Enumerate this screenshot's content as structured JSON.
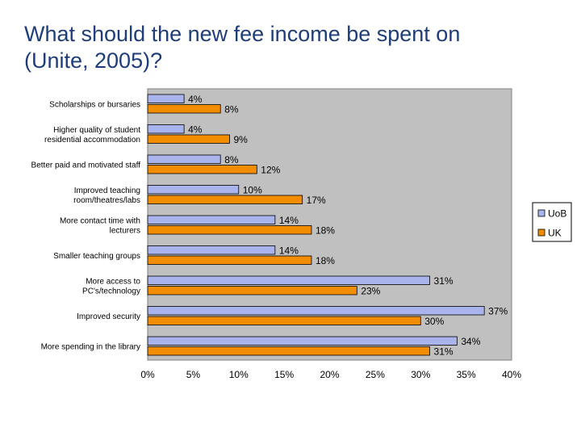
{
  "slide": {
    "title_line1": "What should the new fee income be spent on",
    "title_line2": "(Unite, 2005)?"
  },
  "chart_data": {
    "type": "bar",
    "orientation": "horizontal",
    "categories": [
      [
        "Scholarships or bursaries"
      ],
      [
        "Higher quality of student",
        "residential accommodation"
      ],
      [
        "Better paid and motivated staff"
      ],
      [
        "Improved teaching",
        "room/theatres/labs"
      ],
      [
        "More contact time with",
        "lecturers"
      ],
      [
        "Smaller teaching groups"
      ],
      [
        "More access to",
        "PC's/technology"
      ],
      [
        "Improved security"
      ],
      [
        "More spending in the library"
      ]
    ],
    "series": [
      {
        "name": "UoB",
        "color": "#a9b4ec",
        "values": [
          4,
          4,
          8,
          10,
          14,
          14,
          31,
          37,
          34
        ],
        "labels": [
          "4%",
          "4%",
          "8%",
          "10%",
          "14%",
          "14%",
          "31%",
          "37%",
          "34%"
        ]
      },
      {
        "name": "UK",
        "color": "#f28c00",
        "values": [
          8,
          9,
          12,
          17,
          18,
          18,
          23,
          30,
          31
        ],
        "labels": [
          "8%",
          "9%",
          "12%",
          "17%",
          "18%",
          "18%",
          "23%",
          "30%",
          "31%"
        ]
      }
    ],
    "xlim": [
      0,
      40
    ],
    "xticks": [
      "0%",
      "5%",
      "10%",
      "15%",
      "20%",
      "25%",
      "30%",
      "35%",
      "40%"
    ],
    "grid": false,
    "plot_background": "#c0c0c0",
    "legend_position": "right",
    "title": "",
    "xlabel": "",
    "ylabel": ""
  }
}
